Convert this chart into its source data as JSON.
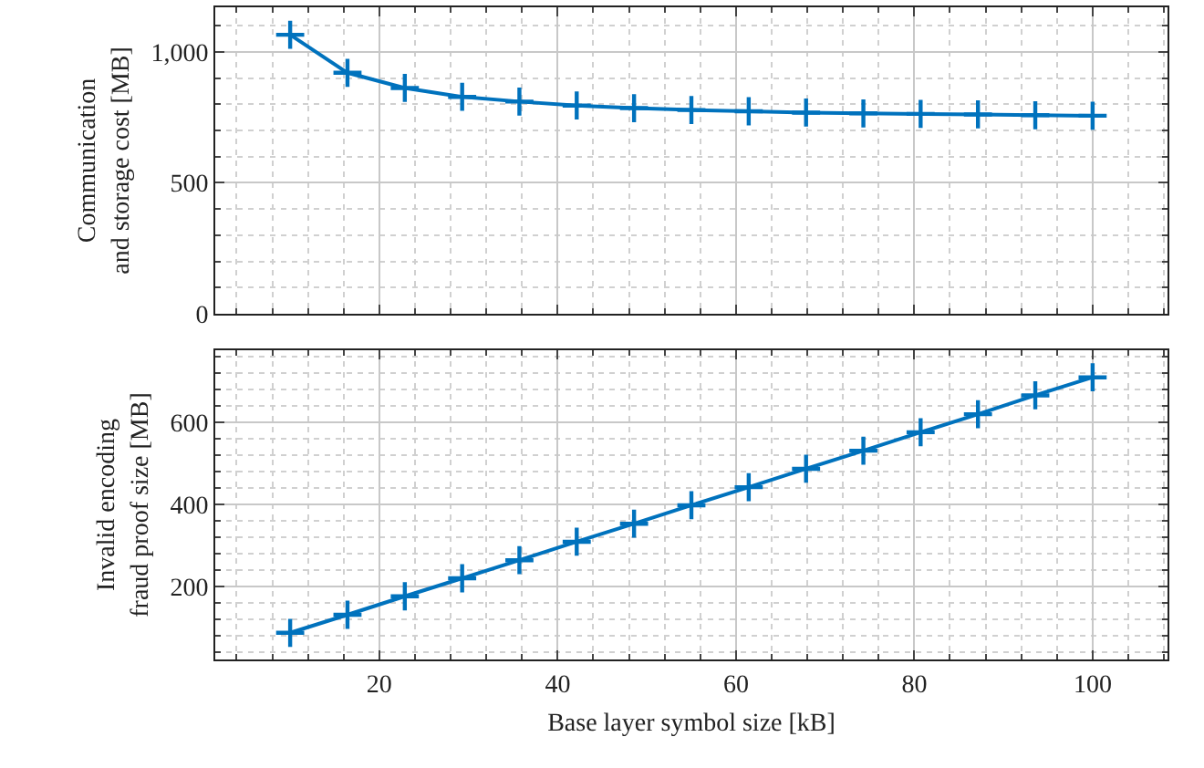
{
  "chart_data": [
    {
      "type": "line",
      "ylabel": "Communication\nand storage cost [MB]",
      "x": [
        10,
        16.43,
        22.86,
        29.29,
        35.71,
        42.14,
        48.57,
        55,
        61.43,
        67.86,
        74.29,
        80.71,
        87.14,
        93.57,
        100
      ],
      "series": [
        {
          "color": "#0072bd",
          "values": [
            1065,
            920,
            862,
            828,
            810,
            795,
            785,
            778,
            773,
            768,
            765,
            763,
            761,
            758,
            756
          ]
        }
      ],
      "xlim": [
        1.6,
        108.4
      ],
      "xticks": [
        20,
        40,
        60,
        80,
        100
      ],
      "ylim": [
        0,
        1170
      ],
      "yticks": [
        0,
        500,
        {
          "value": 1000,
          "label": "1,000"
        }
      ],
      "grid": true,
      "marker": "cross",
      "line_style": "solid",
      "tick_labels": "y"
    },
    {
      "type": "line",
      "xlabel": "Base layer symbol size [kB]",
      "ylabel": "Invalid encoding\nfraud proof size [MB]",
      "x": [
        10,
        16.43,
        22.86,
        29.29,
        35.71,
        42.14,
        48.57,
        55,
        61.43,
        67.86,
        74.29,
        80.71,
        87.14,
        93.57,
        100
      ],
      "series": [
        {
          "color": "#0072bd",
          "values": [
            87,
            131,
            176,
            220,
            264,
            309,
            353,
            398,
            442,
            487,
            531,
            576,
            620,
            666,
            710
          ]
        }
      ],
      "xlim": [
        1.6,
        108.4
      ],
      "xticks": [
        20,
        40,
        60,
        80,
        100
      ],
      "ylim": [
        22,
        776
      ],
      "yticks": [
        200,
        400,
        600
      ],
      "grid": true,
      "marker": "cross",
      "line_style": "solid"
    }
  ]
}
